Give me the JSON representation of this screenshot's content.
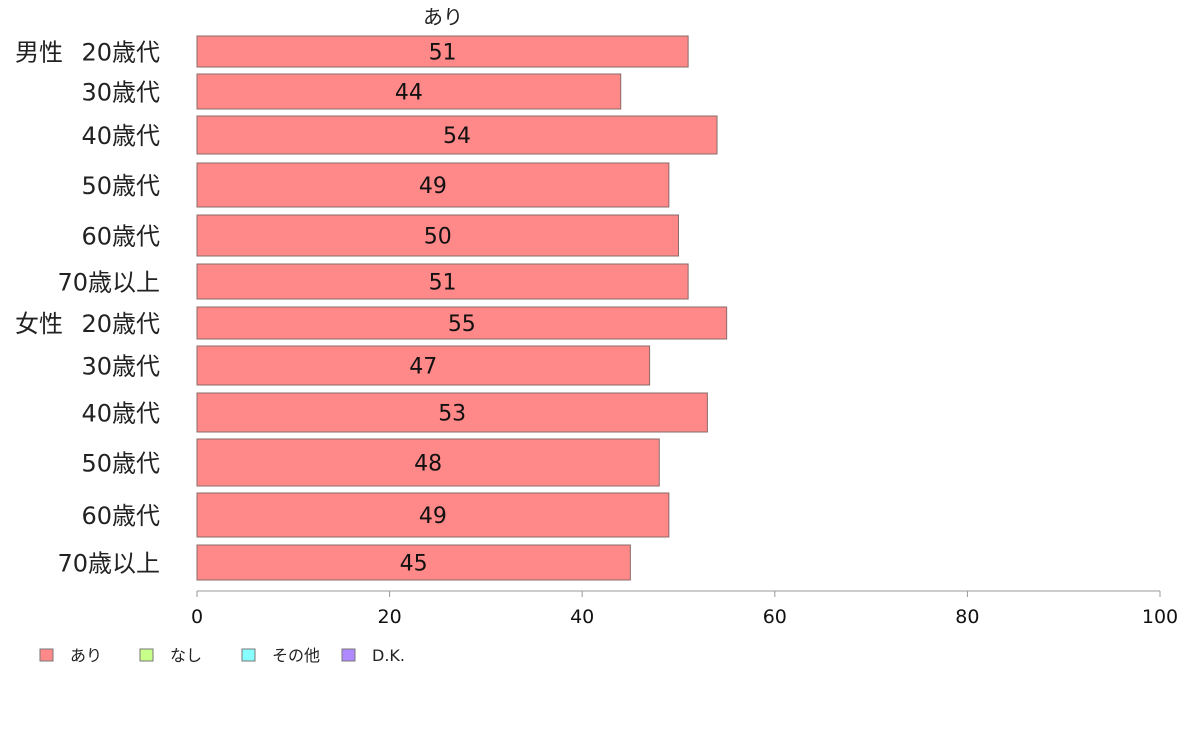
{
  "chart_data": {
    "type": "bar",
    "orientation": "horizontal",
    "title": "あり",
    "groups": [
      {
        "label": "男性",
        "categories": [
          "20歳代",
          "30歳代",
          "40歳代",
          "50歳代",
          "60歳代",
          "70歳以上"
        ],
        "values": [
          51,
          44,
          54,
          49,
          50,
          51
        ]
      },
      {
        "label": "女性",
        "categories": [
          "20歳代",
          "30歳代",
          "40歳代",
          "50歳代",
          "60歳代",
          "70歳以上"
        ],
        "values": [
          55,
          47,
          53,
          48,
          49,
          45
        ]
      }
    ],
    "series": [
      {
        "name": "あり",
        "color": "#ff8888"
      },
      {
        "name": "なし",
        "color": "#c8ff88"
      },
      {
        "name": "その他",
        "color": "#88ffff"
      },
      {
        "name": "D.K.",
        "color": "#b088ff"
      }
    ],
    "xlim": [
      0,
      100
    ],
    "xticks": [
      0,
      20,
      40,
      60,
      80,
      100
    ],
    "grid": false,
    "legend_position": "bottom-left"
  }
}
